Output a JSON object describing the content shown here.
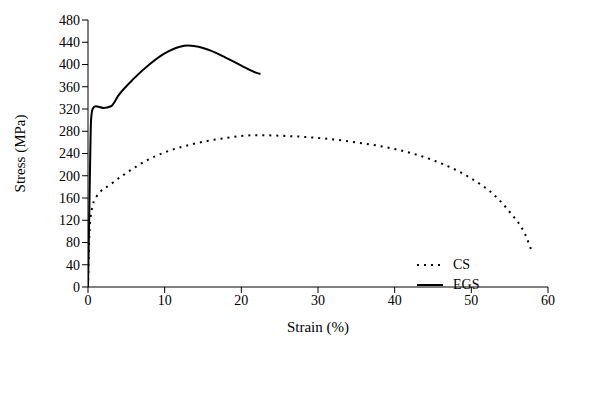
{
  "chart_data": {
    "type": "line",
    "x_label": "Strain (%)",
    "y_label": "Stress (MPa)",
    "xlim": [
      0,
      60
    ],
    "xticks": [
      0,
      10,
      20,
      30,
      40,
      50,
      60
    ],
    "ylim": [
      0,
      480
    ],
    "yticks": [
      0,
      40,
      80,
      120,
      160,
      200,
      240,
      280,
      320,
      360,
      400,
      440,
      480
    ],
    "grid": false,
    "legend": "lower right",
    "series": [
      {
        "name": "CS",
        "color": "#000000",
        "line_style": "dotted",
        "marker": "none",
        "x": [
          0,
          0.2,
          0.5,
          1,
          3,
          5,
          8,
          10,
          14,
          18,
          22,
          25,
          30,
          35,
          40,
          45,
          50,
          53,
          55,
          57,
          58
        ],
        "values": [
          0,
          100,
          140,
          160,
          185,
          205,
          230,
          242,
          258,
          268,
          273,
          272,
          268,
          260,
          248,
          228,
          195,
          165,
          135,
          95,
          60
        ]
      },
      {
        "name": "EGS",
        "color": "#000000",
        "line_style": "solid",
        "marker": "none",
        "x": [
          0,
          0.2,
          0.4,
          0.6,
          1,
          2,
          3,
          4,
          6,
          8,
          10,
          12,
          13,
          14,
          16,
          18,
          20,
          22,
          22.5
        ],
        "values": [
          0,
          160,
          300,
          320,
          325,
          322,
          325,
          345,
          375,
          400,
          420,
          432,
          434,
          433,
          425,
          412,
          398,
          385,
          383
        ]
      }
    ]
  }
}
